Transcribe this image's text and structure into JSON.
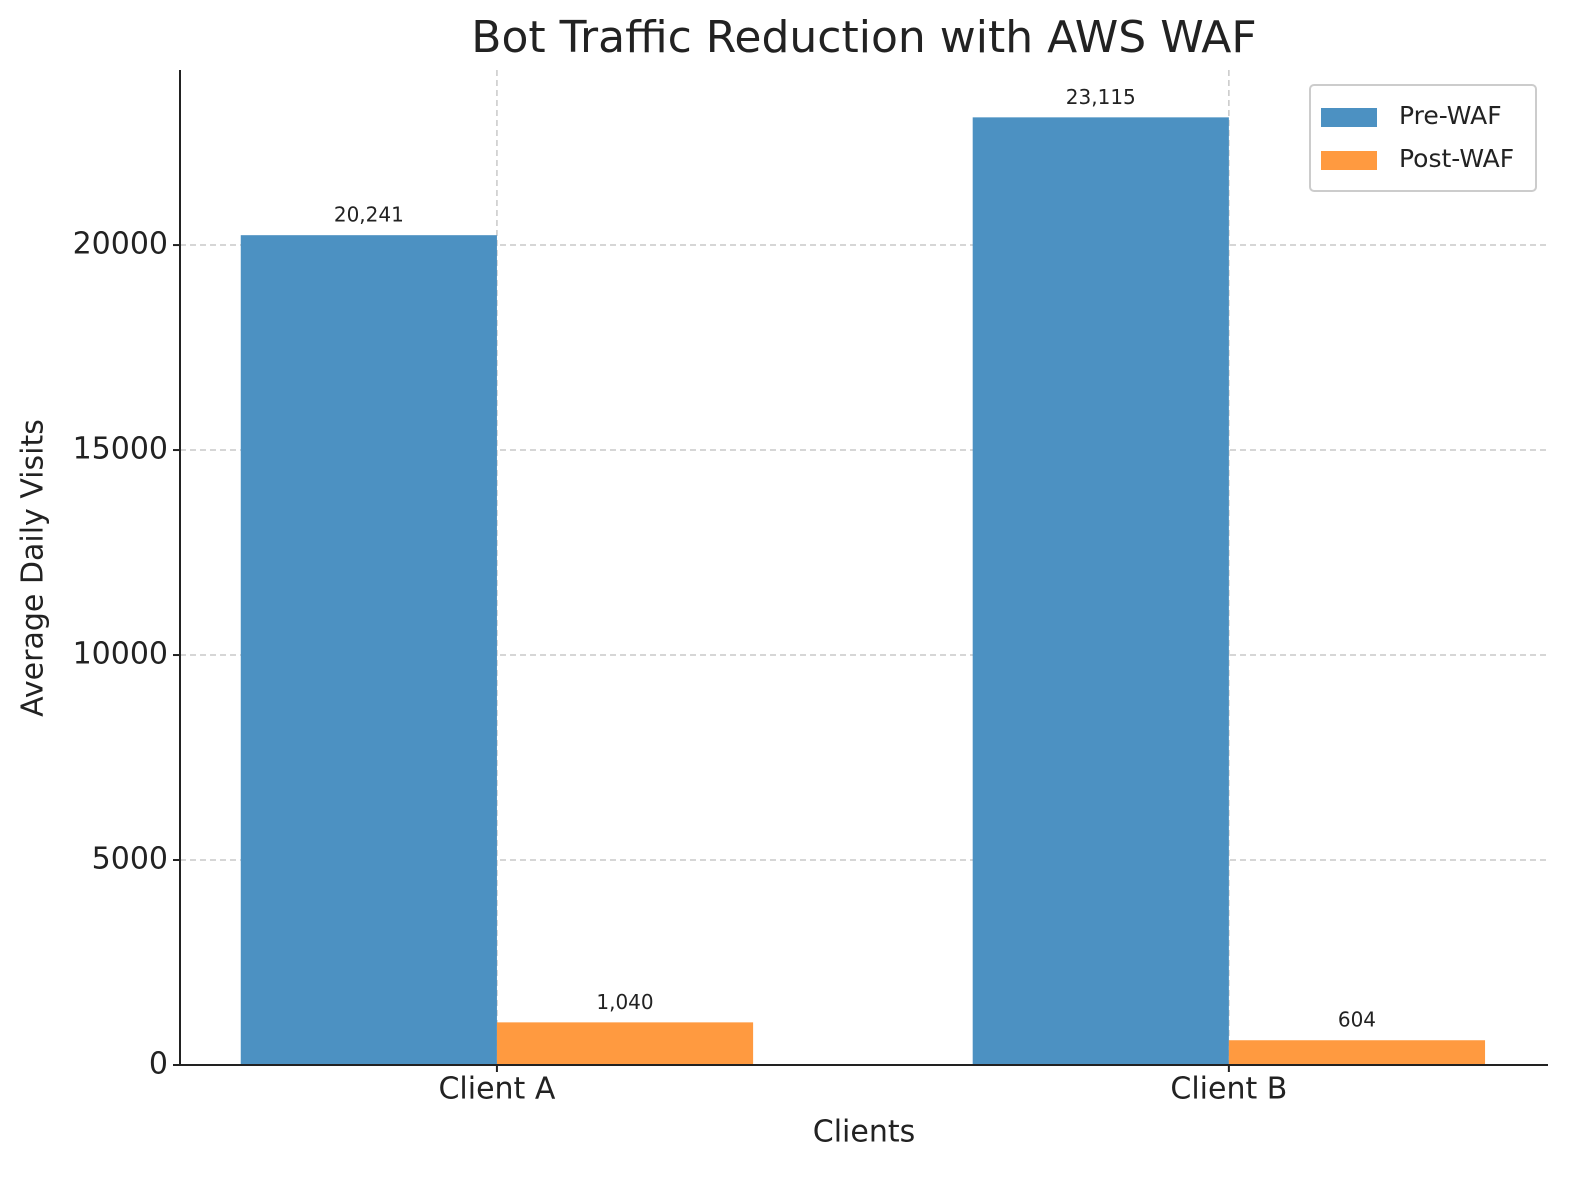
{
  "chart_data": {
    "type": "bar",
    "title": "Bot Traffic Reduction with AWS WAF",
    "x_label": "Clients",
    "y_label": "Average Daily Visits",
    "categories": [
      "Client A",
      "Client B"
    ],
    "series": [
      {
        "name": "Pre-WAF",
        "color": "#4c91c2",
        "values": [
          20241,
          23115
        ],
        "value_labels": [
          "20,241",
          "23,115"
        ]
      },
      {
        "name": "Post-WAF",
        "color": "#ff9a40",
        "values": [
          1040,
          604
        ],
        "value_labels": [
          "1,040",
          "604"
        ]
      }
    ],
    "ylim": [
      0,
      24270
    ],
    "yticks": [
      0,
      5000,
      10000,
      15000,
      20000
    ],
    "grid": true,
    "legend": "upper right"
  }
}
